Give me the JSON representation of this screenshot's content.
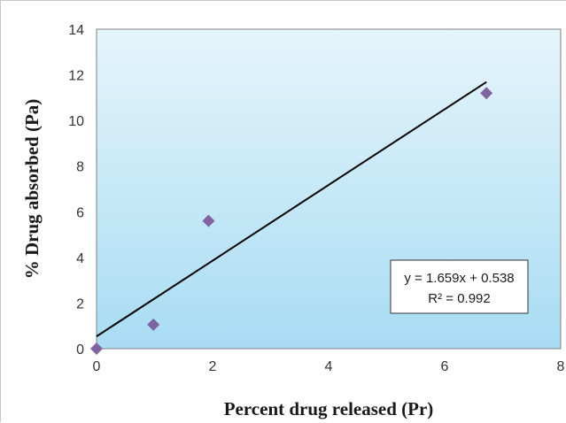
{
  "chart_data": {
    "type": "scatter",
    "title": "",
    "xlabel": "Percent drug released (Pr)",
    "ylabel": "% Drug  absorbed (Pa)",
    "xlim": [
      0,
      8
    ],
    "ylim": [
      0,
      14
    ],
    "x_ticks": [
      "0",
      "2",
      "4",
      "6",
      "8"
    ],
    "y_ticks": [
      "0",
      "2",
      "4",
      "6",
      "8",
      "10",
      "12",
      "14"
    ],
    "grid": false,
    "series": [
      {
        "points": [
          {
            "x": 0,
            "y": 0
          },
          {
            "x": 0.98,
            "y": 1.05
          },
          {
            "x": 1.93,
            "y": 5.6
          },
          {
            "x": 6.72,
            "y": 11.2
          }
        ],
        "marker": "diamond",
        "color": "#8064a2"
      }
    ],
    "trendline": {
      "slope": 1.659,
      "intercept": 0.538,
      "x_range": [
        0,
        6.72
      ],
      "color": "#000000",
      "equation": "y = 1.659x + 0.538",
      "r_squared": "R² = 0.992"
    },
    "plot_background": {
      "top": "#e6f5fb",
      "bottom": "#a8dcf3"
    }
  }
}
